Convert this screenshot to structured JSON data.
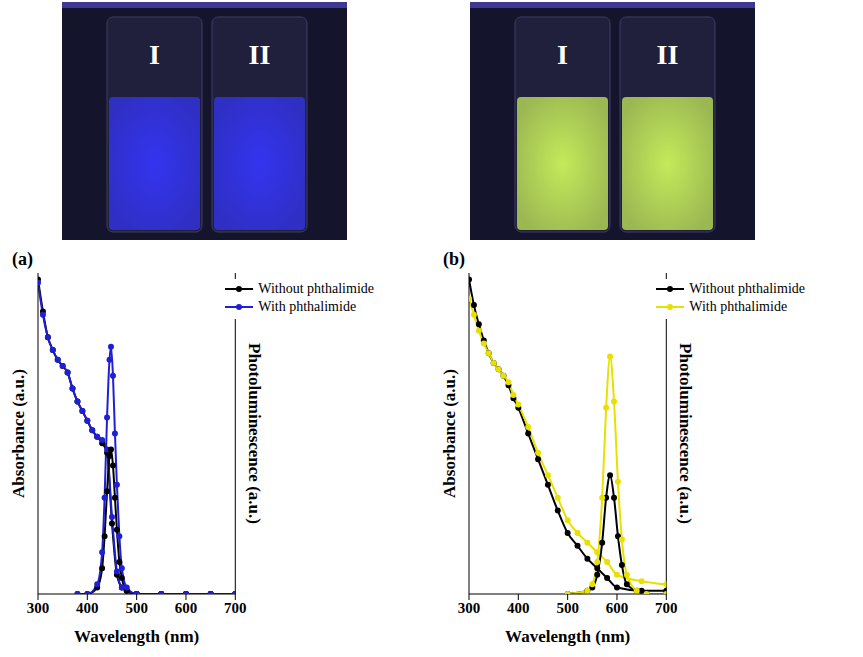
{
  "photos": [
    {
      "labels": [
        "I",
        "II"
      ],
      "color": "#3434f0"
    },
    {
      "labels": [
        "I",
        "II"
      ],
      "color": "#c4ea5a"
    }
  ],
  "chart_data": [
    {
      "type": "line",
      "title": "(a)",
      "xlabel": "Wavelength (nm)",
      "ylabel": "Absorbance (a.u.)",
      "y2label": "Photoluminescence (a.u.)",
      "xlim": [
        300,
        700
      ],
      "xticks": [
        300,
        400,
        500,
        600,
        700
      ],
      "ylim": [
        0,
        1
      ],
      "y2lim": [
        0,
        1
      ],
      "tick_labels": "x",
      "legend": "upper right",
      "marker": "circle",
      "series": [
        {
          "name": "Without phthalimide",
          "color": "#000000",
          "axis": "y",
          "x": [
            300,
            310,
            320,
            330,
            340,
            350,
            360,
            370,
            380,
            390,
            400,
            410,
            420,
            430,
            440,
            450,
            460,
            470,
            480,
            500,
            550,
            600,
            650,
            700
          ],
          "values": [
            0.98,
            0.88,
            0.8,
            0.76,
            0.73,
            0.71,
            0.69,
            0.64,
            0.6,
            0.57,
            0.54,
            0.51,
            0.49,
            0.47,
            0.44,
            0.22,
            0.06,
            0.02,
            0.01,
            0,
            0,
            0,
            0,
            0
          ]
        },
        {
          "name": "With phthalimide",
          "color": "#1f1fd6",
          "axis": "y",
          "x": [
            300,
            310,
            320,
            330,
            340,
            350,
            360,
            370,
            380,
            390,
            400,
            410,
            420,
            430,
            440,
            450,
            460,
            470,
            480,
            500,
            550,
            600,
            650,
            700
          ],
          "values": [
            0.97,
            0.87,
            0.8,
            0.76,
            0.73,
            0.71,
            0.69,
            0.64,
            0.6,
            0.57,
            0.54,
            0.51,
            0.49,
            0.48,
            0.45,
            0.24,
            0.07,
            0.02,
            0.01,
            0,
            0,
            0,
            0,
            0
          ]
        },
        {
          "name": "Without phthalimide",
          "color": "#000000",
          "axis": "y2",
          "x": [
            380,
            400,
            420,
            430,
            435,
            440,
            445,
            448,
            452,
            456,
            460,
            465,
            470,
            480,
            500,
            550,
            600,
            650,
            700
          ],
          "values": [
            0,
            0,
            0.02,
            0.08,
            0.18,
            0.32,
            0.43,
            0.45,
            0.4,
            0.3,
            0.2,
            0.1,
            0.05,
            0.01,
            0,
            0,
            0,
            0,
            0
          ]
        },
        {
          "name": "With phthalimide",
          "color": "#1f1fd6",
          "axis": "y2",
          "x": [
            380,
            400,
            420,
            430,
            435,
            440,
            445,
            448,
            452,
            456,
            460,
            465,
            470,
            480,
            500,
            550,
            600,
            650,
            700
          ],
          "values": [
            0,
            0,
            0.03,
            0.13,
            0.3,
            0.55,
            0.73,
            0.77,
            0.68,
            0.5,
            0.34,
            0.18,
            0.08,
            0.02,
            0,
            0,
            0,
            0,
            0
          ]
        }
      ]
    },
    {
      "type": "line",
      "title": "(b)",
      "xlabel": "Wavelength (nm)",
      "ylabel": "Absorbance (a.u.)",
      "y2label": "Photoluminescence (a.u.)",
      "xlim": [
        300,
        700
      ],
      "xticks": [
        300,
        400,
        500,
        600,
        700
      ],
      "ylim": [
        0,
        1
      ],
      "y2lim": [
        0,
        1
      ],
      "tick_labels": "x",
      "legend": "upper right",
      "marker": "circle",
      "series": [
        {
          "name": "Without phthalimide",
          "color": "#000000",
          "axis": "y",
          "x": [
            300,
            310,
            320,
            330,
            340,
            350,
            360,
            370,
            380,
            390,
            400,
            420,
            440,
            460,
            480,
            500,
            520,
            540,
            560,
            580,
            600,
            650,
            700
          ],
          "values": [
            0.98,
            0.9,
            0.84,
            0.79,
            0.75,
            0.72,
            0.7,
            0.68,
            0.65,
            0.61,
            0.58,
            0.5,
            0.42,
            0.34,
            0.26,
            0.19,
            0.15,
            0.11,
            0.08,
            0.05,
            0.02,
            0.01,
            0.01
          ]
        },
        {
          "name": "With phthalimide",
          "color": "#e8e000",
          "axis": "y",
          "x": [
            300,
            310,
            320,
            330,
            340,
            350,
            360,
            370,
            380,
            390,
            400,
            420,
            440,
            460,
            480,
            500,
            520,
            540,
            560,
            580,
            600,
            650,
            700
          ],
          "values": [
            0.92,
            0.87,
            0.82,
            0.78,
            0.75,
            0.72,
            0.7,
            0.68,
            0.66,
            0.62,
            0.59,
            0.52,
            0.44,
            0.37,
            0.3,
            0.23,
            0.19,
            0.16,
            0.13,
            0.1,
            0.06,
            0.04,
            0.03
          ]
        },
        {
          "name": "Without phthalimide",
          "color": "#000000",
          "axis": "y2",
          "x": [
            500,
            540,
            550,
            560,
            570,
            578,
            586,
            594,
            602,
            610,
            620,
            640,
            660,
            700
          ],
          "values": [
            0,
            0.01,
            0.02,
            0.06,
            0.16,
            0.3,
            0.37,
            0.3,
            0.18,
            0.09,
            0.03,
            0.01,
            0,
            0
          ]
        },
        {
          "name": "With phthalimide",
          "color": "#e8e000",
          "axis": "y2",
          "x": [
            500,
            540,
            550,
            560,
            570,
            578,
            586,
            594,
            602,
            610,
            620,
            640,
            660,
            700
          ],
          "values": [
            0,
            0.01,
            0.03,
            0.1,
            0.3,
            0.58,
            0.74,
            0.6,
            0.35,
            0.17,
            0.06,
            0.01,
            0,
            0
          ]
        }
      ]
    }
  ]
}
